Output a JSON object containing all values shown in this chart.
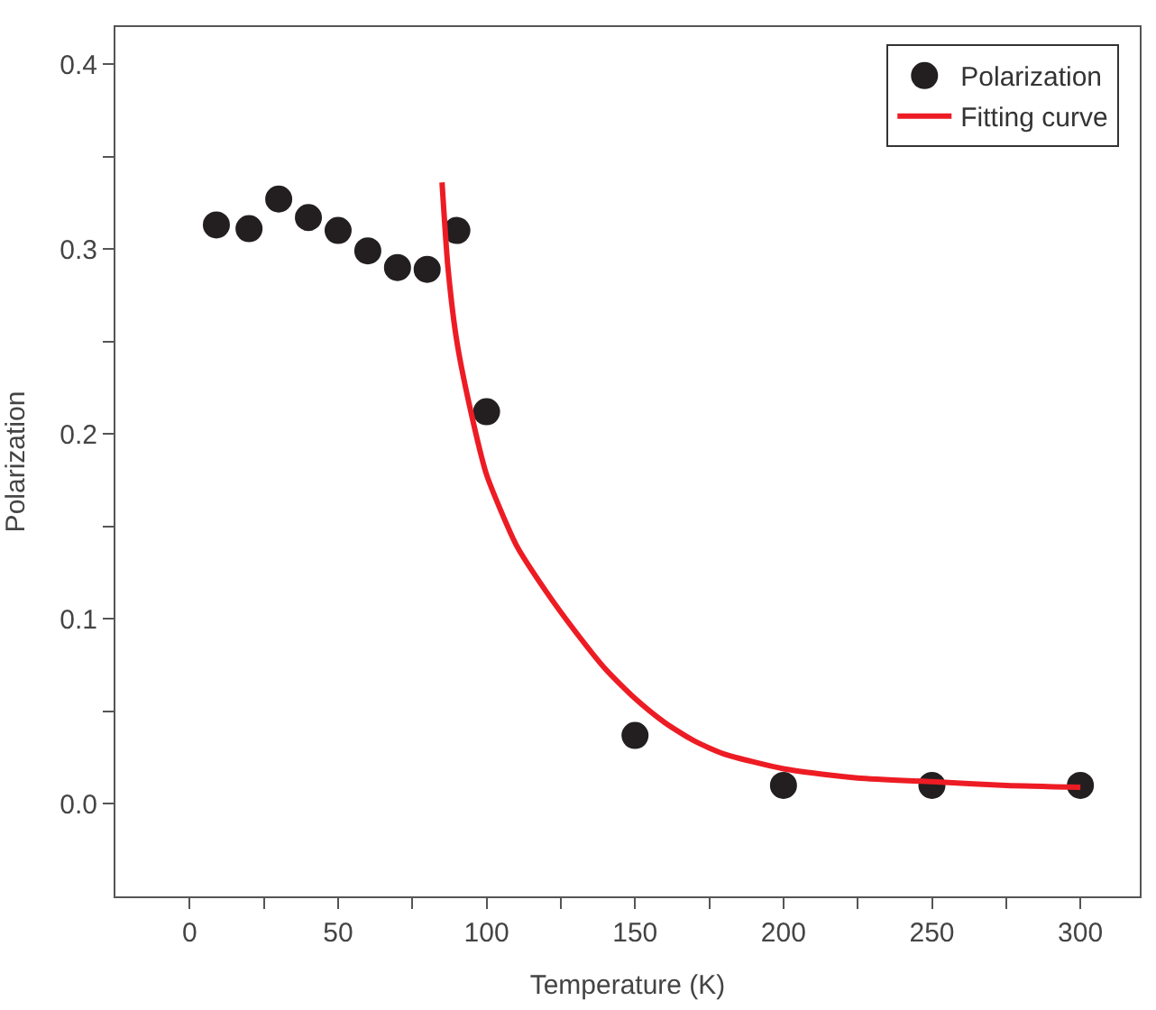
{
  "chart_data": {
    "type": "scatter",
    "xlabel": "Temperature (K)",
    "ylabel": "Polarization",
    "xlim": [
      -25,
      320
    ],
    "ylim": [
      -0.05,
      0.42
    ],
    "xticks": [
      0,
      {
        "value": 25,
        "label": null
      },
      50,
      {
        "value": 75,
        "label": null
      },
      100,
      {
        "value": 125,
        "label": null
      },
      150,
      {
        "value": 175,
        "label": null
      },
      200,
      {
        "value": 225,
        "label": null
      },
      250,
      {
        "value": 275,
        "label": null
      },
      300
    ],
    "yticks": [
      {
        "value": 0,
        "label": "0.0"
      },
      {
        "value": 0.05,
        "label": null
      },
      0.1,
      {
        "value": 0.15,
        "label": null
      },
      0.2,
      {
        "value": 0.25,
        "label": null
      },
      0.3,
      {
        "value": 0.35,
        "label": null
      },
      0.4
    ],
    "legend": "top right",
    "series": [
      {
        "name": "Polarization",
        "marker": "circle",
        "color": "#231f20",
        "x": [
          9,
          20,
          30,
          40,
          50,
          60,
          70,
          80,
          90,
          100,
          150,
          200,
          250,
          300
        ],
        "values": [
          0.313,
          0.311,
          0.327,
          0.317,
          0.31,
          0.299,
          0.29,
          0.289,
          0.31,
          0.212,
          0.037,
          0.01,
          0.01,
          0.01
        ]
      },
      {
        "name": "Fitting curve",
        "type": "line",
        "line_style": "solid",
        "color": "#ed1c24",
        "x": [
          85,
          87,
          90,
          95,
          100,
          110,
          120,
          130,
          140,
          150,
          160,
          170,
          180,
          200,
          225,
          250,
          275,
          300
        ],
        "values": [
          0.336,
          0.29,
          0.25,
          0.21,
          0.178,
          0.14,
          0.115,
          0.093,
          0.073,
          0.057,
          0.044,
          0.034,
          0.027,
          0.019,
          0.014,
          0.012,
          0.01,
          0.009
        ]
      }
    ]
  }
}
